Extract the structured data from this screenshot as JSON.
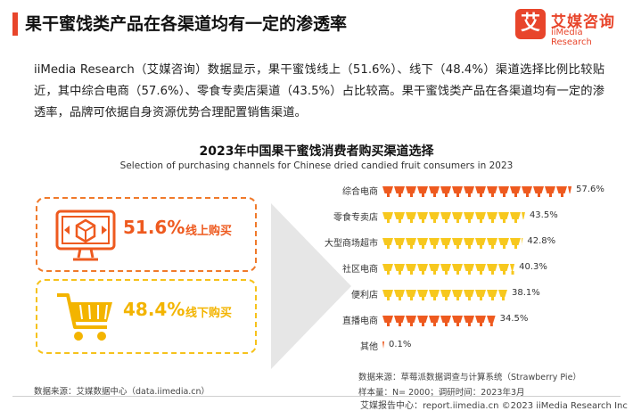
{
  "header": {
    "title": "果干蜜饯类产品在各渠道均有一定的渗透率",
    "logo_mark": "艾",
    "logo_cn": "艾媒咨询",
    "logo_en": "iiMedia Research"
  },
  "intro": "iiMedia Research（艾媒咨询）数据显示，果干蜜饯线上（51.6%）、线下（48.4%）渠道选择比例比较贴近，其中综合电商（57.6%）、零食专卖店渠道（43.5%）占比较高。果干蜜饯类产品在各渠道均有一定的渗透率，品牌可依据自身资源优势合理配置销售渠道。",
  "chart_title": "2023年中国果干蜜饯消费者购买渠道选择",
  "chart_subtitle": "Selection of purchasing channels for Chinese dried candied fruit consumers in 2023",
  "cards": {
    "online": {
      "pct": "51.6%",
      "label": "线上购买",
      "color": "#ee5a1f"
    },
    "offline": {
      "pct": "48.4%",
      "label": "线下购买",
      "color": "#f3b400"
    }
  },
  "chart_data": {
    "type": "bar",
    "orientation": "horizontal",
    "categories": [
      "综合电商",
      "零食专卖店",
      "大型商场超市",
      "社区电商",
      "便利店",
      "直播电商",
      "其他"
    ],
    "values": [
      57.6,
      43.5,
      42.8,
      40.3,
      38.1,
      34.5,
      0.1
    ],
    "value_labels": [
      "57.6%",
      "43.5%",
      "42.8%",
      "40.3%",
      "38.1%",
      "34.5%",
      "0.1%"
    ],
    "colors": [
      "#ee5a1f",
      "#f7c81e",
      "#f7c81e",
      "#f7c81e",
      "#f7c81e",
      "#ee5a1f",
      "#ee5a1f"
    ],
    "unit": "%",
    "title": "2023年中国果干蜜饯消费者购买渠道选择",
    "subtitle": "Selection of purchasing channels for Chinese dried candied fruit consumers in 2023",
    "grid": false,
    "legend": "none"
  },
  "notes": {
    "source": "数据来源：草莓派数据调查与计算系统（Strawberry Pie）",
    "sample": "样本量：N= 2000；调研时间：2023年3月"
  },
  "footer": {
    "left": "数据来源：艾媒数据中心（data.iimedia.cn）",
    "right": "艾媒报告中心：report.iimedia.cn  ©2023  iiMedia Research Inc"
  }
}
